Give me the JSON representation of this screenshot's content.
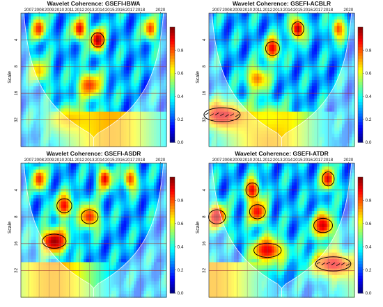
{
  "chart_data": [
    {
      "type": "heatmap",
      "title": "Wavelet Coherence: GSEFI-IBWA",
      "ylabel": "Scale",
      "x_ticks": [
        "2007",
        "2008",
        "2009",
        "2010",
        "2011",
        "2012",
        "2013",
        "2014",
        "2015",
        "2016",
        "2017",
        "2018",
        "2020"
      ],
      "y_ticks": [
        "4",
        "8",
        "16",
        "32"
      ],
      "colorbar": {
        "ticks": [
          "0.0",
          "0.2",
          "0.4",
          "0.6",
          "0.8"
        ],
        "range": [
          0,
          1
        ]
      },
      "hotspots": [
        {
          "year": 2013.8,
          "scale": 4,
          "value": 0.97,
          "significant": true
        },
        {
          "year": 2012.0,
          "scale": 3,
          "value": 0.9
        },
        {
          "year": 2008.0,
          "scale": 3,
          "value": 0.85
        },
        {
          "year": 2019.0,
          "scale": 3,
          "value": 0.82
        },
        {
          "year": 2013.0,
          "scale": 13,
          "value": 0.82
        },
        {
          "year": 2008.0,
          "scale": 9,
          "value": 0.68
        },
        {
          "year": 2011.0,
          "scale": 32,
          "value": 0.68
        }
      ]
    },
    {
      "type": "heatmap",
      "title": "Wavelet Coherence: GSEFI-ACBLR",
      "ylabel": "Scale",
      "x_ticks": [
        "2007",
        "2008",
        "2009",
        "2010",
        "2011",
        "2012",
        "2013",
        "2014",
        "2015",
        "2016",
        "2017",
        "2018",
        "2020"
      ],
      "y_ticks": [
        "4",
        "8",
        "16",
        "32"
      ],
      "colorbar": {
        "ticks": [
          "0.0",
          "0.2",
          "0.4",
          "0.6",
          "0.8"
        ],
        "range": [
          0,
          1
        ]
      },
      "hotspots": [
        {
          "year": 2015.0,
          "scale": 3,
          "value": 0.97,
          "significant": true
        },
        {
          "year": 2012.5,
          "scale": 5,
          "value": 0.9,
          "significant": true
        },
        {
          "year": 2007.5,
          "scale": 28,
          "value": 0.92,
          "significant": true
        },
        {
          "year": 2011.0,
          "scale": 11,
          "value": 0.75
        },
        {
          "year": 2019.0,
          "scale": 3,
          "value": 0.8
        },
        {
          "year": 2012.0,
          "scale": 30,
          "value": 0.62
        }
      ]
    },
    {
      "type": "heatmap",
      "title": "Wavelet Coherence: GSEFI-ASDR",
      "ylabel": "Scale",
      "x_ticks": [
        "2007",
        "2008",
        "2009",
        "2010",
        "2011",
        "2012",
        "2013",
        "2014",
        "2015",
        "2016",
        "2017",
        "2018",
        "2020"
      ],
      "y_ticks": [
        "4",
        "8",
        "16",
        "32"
      ],
      "colorbar": {
        "ticks": [
          "0.0",
          "0.2",
          "0.4",
          "0.6",
          "0.8"
        ],
        "range": [
          0,
          1
        ]
      },
      "hotspots": [
        {
          "year": 2009.5,
          "scale": 15,
          "value": 0.97,
          "significant": true
        },
        {
          "year": 2010.5,
          "scale": 6,
          "value": 0.88,
          "significant": true
        },
        {
          "year": 2013.0,
          "scale": 8,
          "value": 0.85,
          "significant": true
        },
        {
          "year": 2014.5,
          "scale": 3,
          "value": 0.9
        },
        {
          "year": 2008.0,
          "scale": 3,
          "value": 0.85
        },
        {
          "year": 2017.0,
          "scale": 3,
          "value": 0.82
        }
      ]
    },
    {
      "type": "heatmap",
      "title": "Wavelet Coherence: GSEFI-ATDR",
      "ylabel": "Scale",
      "x_ticks": [
        "2007",
        "2008",
        "2009",
        "2010",
        "2011",
        "2012",
        "2013",
        "2014",
        "2015",
        "2016",
        "2017",
        "2018",
        "2020"
      ],
      "y_ticks": [
        "4",
        "8",
        "16",
        "32"
      ],
      "colorbar": {
        "ticks": [
          "0.0",
          "0.2",
          "0.4",
          "0.6",
          "0.8"
        ],
        "range": [
          0,
          1
        ]
      },
      "hotspots": [
        {
          "year": 2007.0,
          "scale": 8,
          "value": 0.95,
          "significant": true
        },
        {
          "year": 2010.5,
          "scale": 4,
          "value": 0.9,
          "significant": true
        },
        {
          "year": 2011.0,
          "scale": 7,
          "value": 0.88,
          "significant": true
        },
        {
          "year": 2017.5,
          "scale": 10,
          "value": 0.92,
          "significant": true
        },
        {
          "year": 2012.0,
          "scale": 19,
          "value": 0.9,
          "significant": true
        },
        {
          "year": 2018.5,
          "scale": 27,
          "value": 0.9,
          "significant": true
        },
        {
          "year": 2018.0,
          "scale": 3,
          "value": 0.92,
          "significant": true
        }
      ]
    }
  ]
}
